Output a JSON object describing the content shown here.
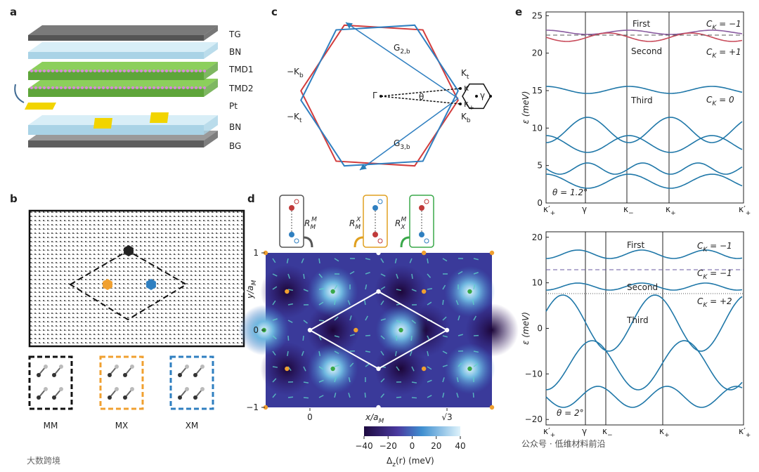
{
  "panel_a": {
    "label": "a",
    "layers": [
      "TG",
      "BN",
      "TMD1",
      "TMD2",
      "Pt",
      "BN",
      "BG"
    ]
  },
  "panel_b": {
    "label": "b",
    "stackings": [
      "MM",
      "MX",
      "XM"
    ]
  },
  "panel_c": {
    "label": "c",
    "labels": [
      {
        "text": "−K",
        "sub": "b"
      },
      {
        "text": "−K",
        "sub": "t"
      },
      {
        "text": "G",
        "sub": "2,b"
      },
      {
        "text": "G",
        "sub": "3,b"
      },
      {
        "text": "Γ"
      },
      {
        "text": "θ"
      },
      {
        "text": "K",
        "sub": "t"
      },
      {
        "text": "κ"
      },
      {
        "text": "γ"
      },
      {
        "text": "κ",
        "sub": "+"
      },
      {
        "text": "K",
        "sub": "b"
      }
    ]
  },
  "panel_d": {
    "label": "d",
    "operators": [
      {
        "text": "R",
        "sub": "M",
        "sup": "M"
      },
      {
        "text": "R",
        "sub": "M",
        "sup": "X"
      },
      {
        "text": "R",
        "sub": "X",
        "sup": "M"
      }
    ],
    "y_axis": {
      "text": "y/a",
      "sub": "M"
    },
    "x_axis": {
      "text": "x/a",
      "sub": "M"
    },
    "ylim": [
      -1,
      1
    ],
    "yticks": [
      1,
      0,
      {
        "value": -1,
        "label": "−1"
      }
    ],
    "xticks": [
      0,
      {
        "value": 1.7320508,
        "label": "√3"
      }
    ],
    "colorbar": {
      "lim": [
        -40,
        40
      ],
      "ticks": [
        {
          "value": -40,
          "label": "−40"
        },
        {
          "value": -20,
          "label": "−20"
        },
        0,
        20,
        40
      ],
      "label": {
        "text": "Δ",
        "sub": "z",
        "rest": "(r) (meV)"
      }
    }
  },
  "panel_e": {
    "label": "e",
    "panels": [
      {
        "ylim": [
          0,
          25.5
        ],
        "yticks": [
          0,
          5,
          10,
          15,
          20,
          25
        ],
        "y_label": "ε (meV)",
        "x_labels": [
          {
            "text": "κ′",
            "sub": "+"
          },
          {
            "text": "γ"
          },
          {
            "text": "κ",
            "sub": "−"
          },
          {
            "text": "κ",
            "sub": "+"
          },
          {
            "text": "κ′",
            "sub": "+"
          }
        ],
        "band_labels": [
          "First",
          "Second",
          "Third"
        ],
        "chern": [
          {
            "text": "C",
            "sub": "K",
            "rest": " = −1"
          },
          {
            "text": "C",
            "sub": "K",
            "rest": " = +1"
          },
          {
            "text": "C",
            "sub": "K",
            "rest": " = 0"
          }
        ],
        "theta": "θ = 1.2°"
      },
      {
        "ylim": [
          -21.2,
          21.2
        ],
        "yticks": [
          {
            "value": -20,
            "label": "−20"
          },
          {
            "value": -10,
            "label": "−10"
          },
          0,
          10,
          20
        ],
        "y_label": "ε (meV)",
        "x_labels": [
          {
            "text": "κ′",
            "sub": "+"
          },
          {
            "text": "γ"
          },
          {
            "text": "κ",
            "sub": "−"
          },
          {
            "text": "κ",
            "sub": "+"
          },
          {
            "text": "κ′",
            "sub": "+"
          }
        ],
        "band_labels": [
          "First",
          "Second",
          "Third"
        ],
        "chern": [
          {
            "text": "C",
            "sub": "K",
            "rest": " = −1"
          },
          {
            "text": "C",
            "sub": "K",
            "rest": " = −1"
          },
          {
            "text": "C",
            "sub": "K",
            "rest": " = +2"
          }
        ],
        "theta": "θ = 2°"
      }
    ]
  },
  "watermarks": [
    "公众号 · 低维材料前沿",
    "大数跨境"
  ]
}
